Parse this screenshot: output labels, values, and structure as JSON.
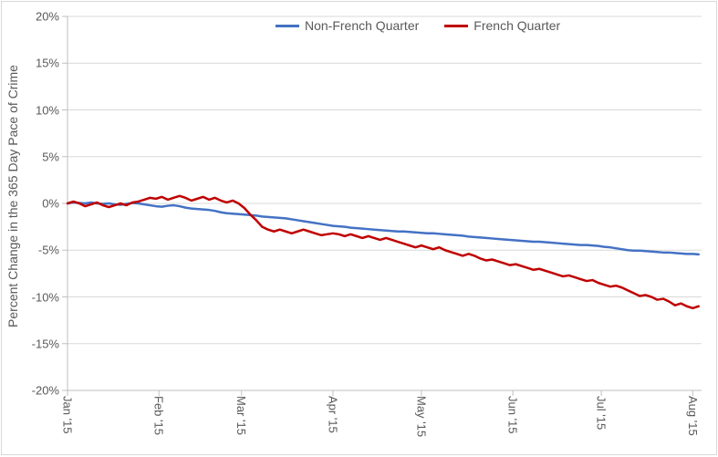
{
  "chart": {
    "type": "line",
    "background_color": "#ffffff",
    "border_color": "#d9d9d9",
    "grid_color": "#d9d9d9",
    "axis_line_color": "#bfbfbf",
    "tick_mark_color": "#bfbfbf",
    "label_color": "#595959",
    "label_fontsize": 13,
    "axis_title_fontsize": 14,
    "legend_fontsize": 14,
    "y_axis": {
      "title": "Percent Change in the 365 Day Pace of Crime",
      "min": -20,
      "max": 20,
      "tick_step": 5,
      "ticks": [
        20,
        15,
        10,
        5,
        0,
        -5,
        -10,
        -15,
        -20
      ],
      "tick_labels": [
        "20%",
        "15%",
        "10%",
        "5%",
        "0%",
        "-5%",
        "-10%",
        "-15%",
        "-20%"
      ]
    },
    "x_axis": {
      "min": 0,
      "max": 215,
      "ticks": [
        0,
        31,
        59,
        90,
        120,
        151,
        181,
        212
      ],
      "tick_labels": [
        "Jan '15",
        "Feb '15",
        "Mar '15",
        "Apr '15",
        "May '15",
        "Jun '15",
        "Jul '15",
        "Aug '15"
      ]
    },
    "legend": {
      "position": "top",
      "items": [
        {
          "label": "Non-French Quarter",
          "color": "#4472c4"
        },
        {
          "label": "French Quarter",
          "color": "#c00000"
        }
      ]
    },
    "series": [
      {
        "name": "Non-French Quarter",
        "color": "#4472c4",
        "line_width": 2.5,
        "data": [
          [
            0,
            0.0
          ],
          [
            2,
            0.1
          ],
          [
            4,
            0.05
          ],
          [
            6,
            0.0
          ],
          [
            8,
            0.1
          ],
          [
            10,
            0.0
          ],
          [
            12,
            -0.05
          ],
          [
            14,
            0.0
          ],
          [
            16,
            -0.1
          ],
          [
            18,
            -0.15
          ],
          [
            20,
            -0.05
          ],
          [
            22,
            0.05
          ],
          [
            24,
            0.0
          ],
          [
            26,
            -0.1
          ],
          [
            28,
            -0.2
          ],
          [
            30,
            -0.3
          ],
          [
            32,
            -0.35
          ],
          [
            34,
            -0.25
          ],
          [
            36,
            -0.2
          ],
          [
            38,
            -0.3
          ],
          [
            40,
            -0.45
          ],
          [
            42,
            -0.55
          ],
          [
            44,
            -0.6
          ],
          [
            46,
            -0.65
          ],
          [
            48,
            -0.7
          ],
          [
            50,
            -0.8
          ],
          [
            52,
            -0.95
          ],
          [
            54,
            -1.05
          ],
          [
            56,
            -1.1
          ],
          [
            58,
            -1.15
          ],
          [
            60,
            -1.2
          ],
          [
            62,
            -1.25
          ],
          [
            64,
            -1.3
          ],
          [
            66,
            -1.4
          ],
          [
            68,
            -1.45
          ],
          [
            70,
            -1.5
          ],
          [
            72,
            -1.55
          ],
          [
            74,
            -1.6
          ],
          [
            76,
            -1.7
          ],
          [
            78,
            -1.8
          ],
          [
            80,
            -1.9
          ],
          [
            82,
            -2.0
          ],
          [
            84,
            -2.1
          ],
          [
            86,
            -2.2
          ],
          [
            88,
            -2.3
          ],
          [
            90,
            -2.4
          ],
          [
            92,
            -2.45
          ],
          [
            94,
            -2.5
          ],
          [
            96,
            -2.6
          ],
          [
            98,
            -2.65
          ],
          [
            100,
            -2.7
          ],
          [
            102,
            -2.75
          ],
          [
            104,
            -2.8
          ],
          [
            106,
            -2.85
          ],
          [
            108,
            -2.9
          ],
          [
            110,
            -2.95
          ],
          [
            112,
            -3.0
          ],
          [
            114,
            -3.0
          ],
          [
            116,
            -3.05
          ],
          [
            118,
            -3.1
          ],
          [
            120,
            -3.15
          ],
          [
            122,
            -3.2
          ],
          [
            124,
            -3.2
          ],
          [
            126,
            -3.25
          ],
          [
            128,
            -3.3
          ],
          [
            130,
            -3.35
          ],
          [
            132,
            -3.4
          ],
          [
            134,
            -3.45
          ],
          [
            136,
            -3.55
          ],
          [
            138,
            -3.6
          ],
          [
            140,
            -3.65
          ],
          [
            142,
            -3.7
          ],
          [
            144,
            -3.75
          ],
          [
            146,
            -3.8
          ],
          [
            148,
            -3.85
          ],
          [
            150,
            -3.9
          ],
          [
            152,
            -3.95
          ],
          [
            154,
            -4.0
          ],
          [
            156,
            -4.05
          ],
          [
            158,
            -4.1
          ],
          [
            160,
            -4.1
          ],
          [
            162,
            -4.15
          ],
          [
            164,
            -4.2
          ],
          [
            166,
            -4.25
          ],
          [
            168,
            -4.3
          ],
          [
            170,
            -4.35
          ],
          [
            172,
            -4.4
          ],
          [
            174,
            -4.45
          ],
          [
            176,
            -4.45
          ],
          [
            178,
            -4.5
          ],
          [
            180,
            -4.55
          ],
          [
            182,
            -4.65
          ],
          [
            184,
            -4.7
          ],
          [
            186,
            -4.8
          ],
          [
            188,
            -4.9
          ],
          [
            190,
            -5.0
          ],
          [
            192,
            -5.05
          ],
          [
            194,
            -5.05
          ],
          [
            196,
            -5.1
          ],
          [
            198,
            -5.15
          ],
          [
            200,
            -5.2
          ],
          [
            202,
            -5.25
          ],
          [
            204,
            -5.25
          ],
          [
            206,
            -5.3
          ],
          [
            208,
            -5.35
          ],
          [
            210,
            -5.4
          ],
          [
            212,
            -5.4
          ],
          [
            214,
            -5.45
          ]
        ]
      },
      {
        "name": "French Quarter",
        "color": "#c00000",
        "line_width": 2.5,
        "data": [
          [
            0,
            0.0
          ],
          [
            2,
            0.2
          ],
          [
            4,
            0.0
          ],
          [
            6,
            -0.3
          ],
          [
            8,
            -0.1
          ],
          [
            10,
            0.1
          ],
          [
            12,
            -0.2
          ],
          [
            14,
            -0.4
          ],
          [
            16,
            -0.2
          ],
          [
            18,
            0.0
          ],
          [
            20,
            -0.2
          ],
          [
            22,
            0.1
          ],
          [
            24,
            0.2
          ],
          [
            26,
            0.4
          ],
          [
            28,
            0.6
          ],
          [
            30,
            0.5
          ],
          [
            32,
            0.7
          ],
          [
            34,
            0.4
          ],
          [
            36,
            0.6
          ],
          [
            38,
            0.8
          ],
          [
            40,
            0.6
          ],
          [
            42,
            0.3
          ],
          [
            44,
            0.5
          ],
          [
            46,
            0.7
          ],
          [
            48,
            0.4
          ],
          [
            50,
            0.6
          ],
          [
            52,
            0.3
          ],
          [
            54,
            0.1
          ],
          [
            56,
            0.3
          ],
          [
            58,
            0.0
          ],
          [
            60,
            -0.5
          ],
          [
            62,
            -1.2
          ],
          [
            64,
            -1.8
          ],
          [
            66,
            -2.5
          ],
          [
            68,
            -2.8
          ],
          [
            70,
            -3.0
          ],
          [
            72,
            -2.8
          ],
          [
            74,
            -3.0
          ],
          [
            76,
            -3.2
          ],
          [
            78,
            -3.0
          ],
          [
            80,
            -2.8
          ],
          [
            82,
            -3.0
          ],
          [
            84,
            -3.2
          ],
          [
            86,
            -3.4
          ],
          [
            88,
            -3.3
          ],
          [
            90,
            -3.2
          ],
          [
            92,
            -3.3
          ],
          [
            94,
            -3.5
          ],
          [
            96,
            -3.3
          ],
          [
            98,
            -3.5
          ],
          [
            100,
            -3.7
          ],
          [
            102,
            -3.5
          ],
          [
            104,
            -3.7
          ],
          [
            106,
            -3.9
          ],
          [
            108,
            -3.7
          ],
          [
            110,
            -3.9
          ],
          [
            112,
            -4.1
          ],
          [
            114,
            -4.3
          ],
          [
            116,
            -4.5
          ],
          [
            118,
            -4.7
          ],
          [
            120,
            -4.5
          ],
          [
            122,
            -4.7
          ],
          [
            124,
            -4.9
          ],
          [
            126,
            -4.7
          ],
          [
            128,
            -5.0
          ],
          [
            130,
            -5.2
          ],
          [
            132,
            -5.4
          ],
          [
            134,
            -5.6
          ],
          [
            136,
            -5.4
          ],
          [
            138,
            -5.6
          ],
          [
            140,
            -5.9
          ],
          [
            142,
            -6.1
          ],
          [
            144,
            -6.0
          ],
          [
            146,
            -6.2
          ],
          [
            148,
            -6.4
          ],
          [
            150,
            -6.6
          ],
          [
            152,
            -6.5
          ],
          [
            154,
            -6.7
          ],
          [
            156,
            -6.9
          ],
          [
            158,
            -7.1
          ],
          [
            160,
            -7.0
          ],
          [
            162,
            -7.2
          ],
          [
            164,
            -7.4
          ],
          [
            166,
            -7.6
          ],
          [
            168,
            -7.8
          ],
          [
            170,
            -7.7
          ],
          [
            172,
            -7.9
          ],
          [
            174,
            -8.1
          ],
          [
            176,
            -8.3
          ],
          [
            178,
            -8.2
          ],
          [
            180,
            -8.5
          ],
          [
            182,
            -8.7
          ],
          [
            184,
            -8.9
          ],
          [
            186,
            -8.8
          ],
          [
            188,
            -9.0
          ],
          [
            190,
            -9.3
          ],
          [
            192,
            -9.6
          ],
          [
            194,
            -9.9
          ],
          [
            196,
            -9.8
          ],
          [
            198,
            -10.0
          ],
          [
            200,
            -10.3
          ],
          [
            202,
            -10.2
          ],
          [
            204,
            -10.5
          ],
          [
            206,
            -10.9
          ],
          [
            208,
            -10.7
          ],
          [
            210,
            -11.0
          ],
          [
            212,
            -11.2
          ],
          [
            214,
            -11.0
          ]
        ]
      }
    ]
  }
}
